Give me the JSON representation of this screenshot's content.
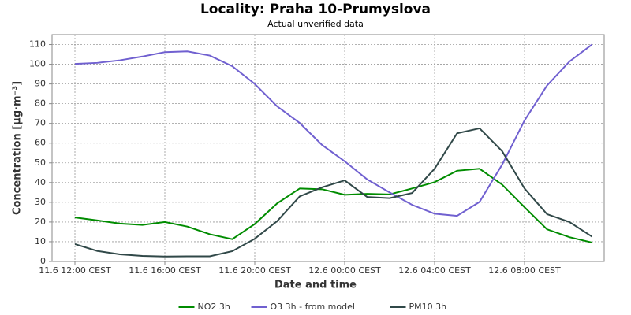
{
  "chart_data": {
    "type": "line",
    "title": "Locality: Praha 10-Prumyslova",
    "subtitle": "Actual unverified data",
    "x_label": "Date and time",
    "y_label": "Concentration [µg·m⁻³]",
    "categories": [
      "11.6 12:00 CEST",
      null,
      null,
      null,
      "11.6 16:00 CEST",
      null,
      null,
      null,
      "11.6 20:00 CEST",
      null,
      null,
      null,
      "12.6 00:00 CEST",
      null,
      null,
      null,
      "12.6 04:00 CEST",
      null,
      null,
      null,
      "12.6 08:00 CEST",
      null,
      null,
      null
    ],
    "series": [
      {
        "name": "NO2 3h",
        "color": "#008c00",
        "values": [
          22.3,
          20.8,
          19.2,
          18.5,
          20,
          17.7,
          13.8,
          11.3,
          19,
          29.5,
          37,
          36.6,
          33.8,
          34.3,
          34,
          37,
          40.2,
          46,
          47,
          39,
          27.5,
          16.3,
          12.3,
          9.6
        ]
      },
      {
        "name": "O3 3h - from model",
        "color": "#7060d0",
        "values": [
          100.2,
          100.7,
          102,
          103.9,
          106.1,
          106.5,
          104.4,
          99,
          90,
          78.6,
          70.2,
          59,
          50.8,
          41.6,
          35,
          28.7,
          24.2,
          23.1,
          30.2,
          49,
          71.5,
          89.2,
          101.4,
          110
        ]
      },
      {
        "name": "PM10 3h",
        "color": "#304848",
        "values": [
          8.8,
          5.3,
          3.6,
          2.8,
          2.5,
          2.6,
          2.6,
          5.2,
          11.5,
          20.5,
          33,
          37.6,
          41.1,
          32.7,
          32.1,
          34.7,
          47,
          65,
          67.5,
          56,
          37,
          24,
          20,
          12.6
        ]
      }
    ],
    "ylim": [
      0,
      115
    ],
    "yticks": [
      0,
      10,
      20,
      30,
      40,
      50,
      60,
      70,
      80,
      90,
      100,
      110
    ],
    "grid": true,
    "legend": "bottom"
  }
}
